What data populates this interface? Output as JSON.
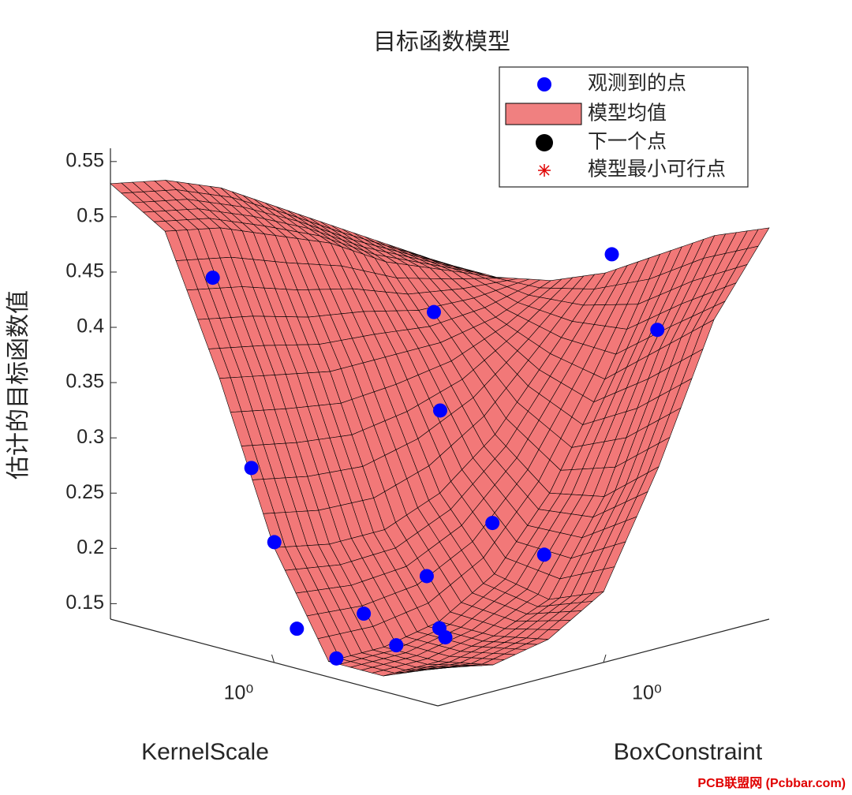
{
  "chart_data": {
    "type": "surface3d",
    "title": "目标函数模型",
    "xlabel": "KernelScale",
    "ylabel": "BoxConstraint",
    "zlabel": "估计的目标函数值",
    "xscale": "log",
    "yscale": "log",
    "xlim": [
      0.001,
      1000
    ],
    "ylim": [
      0.001,
      1000
    ],
    "zlim": [
      0.136,
      0.562
    ],
    "xticks": [
      {
        "value": 1,
        "label": "10⁰"
      }
    ],
    "yticks": [
      {
        "value": 1,
        "label": "10⁰"
      }
    ],
    "zticks": [
      0.15,
      0.2,
      0.25,
      0.3,
      0.35,
      0.4,
      0.45,
      0.5,
      0.55
    ],
    "legend": [
      "观测到的点",
      "模型均值",
      "下一个点",
      "模型最小可行点"
    ],
    "legend_position": "northeast",
    "surface": {
      "name": "模型均值",
      "color": "#f06060",
      "x": [
        0.001,
        0.01,
        0.1,
        1,
        10,
        100,
        1000
      ],
      "y": [
        0.001,
        0.01,
        0.1,
        1,
        10,
        100,
        1000
      ],
      "z": [
        [
          0.53,
          0.52,
          0.5,
          0.47,
          0.44,
          0.41,
          0.38
        ],
        [
          0.5,
          0.49,
          0.47,
          0.45,
          0.42,
          0.4,
          0.38
        ],
        [
          0.38,
          0.37,
          0.36,
          0.36,
          0.36,
          0.37,
          0.39
        ],
        [
          0.24,
          0.23,
          0.23,
          0.25,
          0.29,
          0.35,
          0.41
        ],
        [
          0.15,
          0.15,
          0.16,
          0.19,
          0.25,
          0.34,
          0.44
        ],
        [
          0.15,
          0.15,
          0.16,
          0.18,
          0.26,
          0.38,
          0.47
        ],
        [
          0.17,
          0.16,
          0.17,
          0.2,
          0.3,
          0.42,
          0.49
        ]
      ]
    },
    "points": {
      "name": "观测到的点",
      "color": "#0000ff",
      "x": [
        0.016,
        0.126,
        0.5,
        2,
        12,
        16,
        63,
        32,
        251,
        0.063,
        0.25,
        4,
        63,
        1,
        1,
        8
      ],
      "y": [
        0.0046,
        0.003,
        0.002,
        0.0013,
        0.00115,
        0.0105,
        0.021,
        0.032,
        0.33,
        12,
        4,
        331,
        145,
        0.58,
        0.042,
        1.15
      ],
      "z": [
        0.452,
        0.294,
        0.237,
        0.169,
        0.153,
        0.154,
        0.165,
        0.167,
        0.232,
        0.384,
        0.309,
        0.441,
        0.393,
        0.178,
        0.159,
        0.234
      ]
    },
    "watermark": "PCB联盟网 (Pcbbar.com)"
  }
}
